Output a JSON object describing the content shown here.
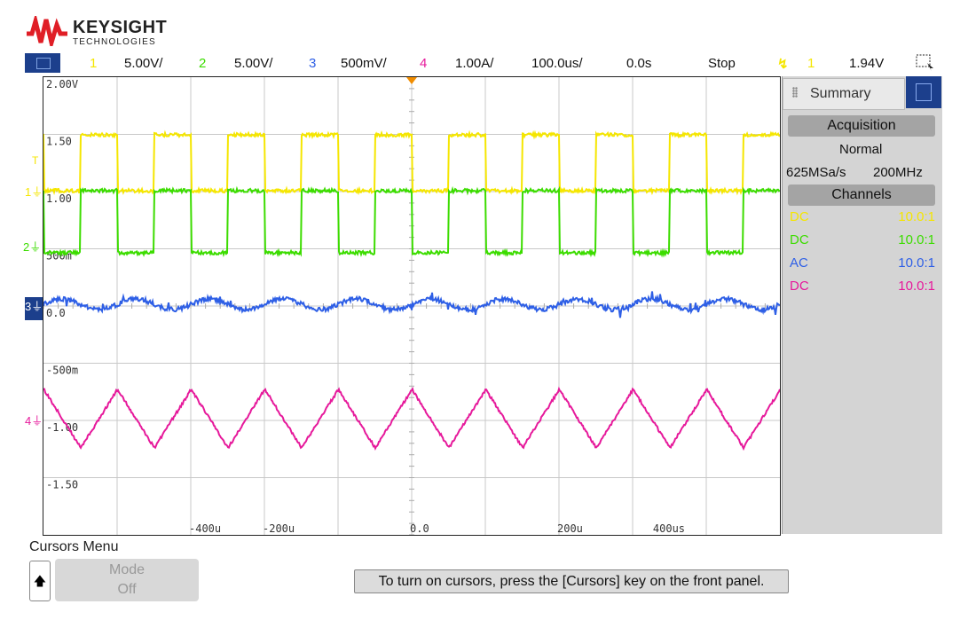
{
  "logo": {
    "brand": "KEYSIGHT",
    "sub": "TECHNOLOGIES"
  },
  "topbar": {
    "ch1": {
      "num": "1",
      "scale": "5.00V/"
    },
    "ch2": {
      "num": "2",
      "scale": "5.00V/"
    },
    "ch3": {
      "num": "3",
      "scale": "500mV/"
    },
    "ch4": {
      "num": "4",
      "scale": "1.00A/"
    },
    "timebase": "100.0us/",
    "delay": "0.0s",
    "run_state": "Stop",
    "trig_channel": "1",
    "trig_level": "1.94V"
  },
  "colors": {
    "ch1": "#f5e600",
    "ch2": "#3cdc00",
    "ch3": "#2e5fe6",
    "ch4": "#e6199b",
    "accent": "#1c3f8c"
  },
  "y_labels": [
    "2.00V",
    "1.50",
    "1.00",
    "500m",
    "0.0",
    "-500m",
    "-1.00",
    "-1.50"
  ],
  "x_labels": [
    "-400u",
    "-200u",
    "0.0",
    "200u",
    "400us"
  ],
  "channel_markers": [
    "1",
    "2",
    "3",
    "4"
  ],
  "panel": {
    "tab_label": "Summary",
    "acq_title": "Acquisition",
    "acq_mode": "Normal",
    "sample_rate": "625MSa/s",
    "bandwidth": "200MHz",
    "chan_title": "Channels",
    "channels": [
      {
        "coupling": "DC",
        "probe": "10.0:1"
      },
      {
        "coupling": "DC",
        "probe": "10.0:1"
      },
      {
        "coupling": "AC",
        "probe": "10.0:1"
      },
      {
        "coupling": "DC",
        "probe": "10.0:1"
      }
    ]
  },
  "bottom": {
    "menu_title": "Cursors Menu",
    "mode_label": "Mode",
    "mode_value": "Off",
    "hint": "To turn on cursors, press the [Cursors] key on the front panel."
  }
}
